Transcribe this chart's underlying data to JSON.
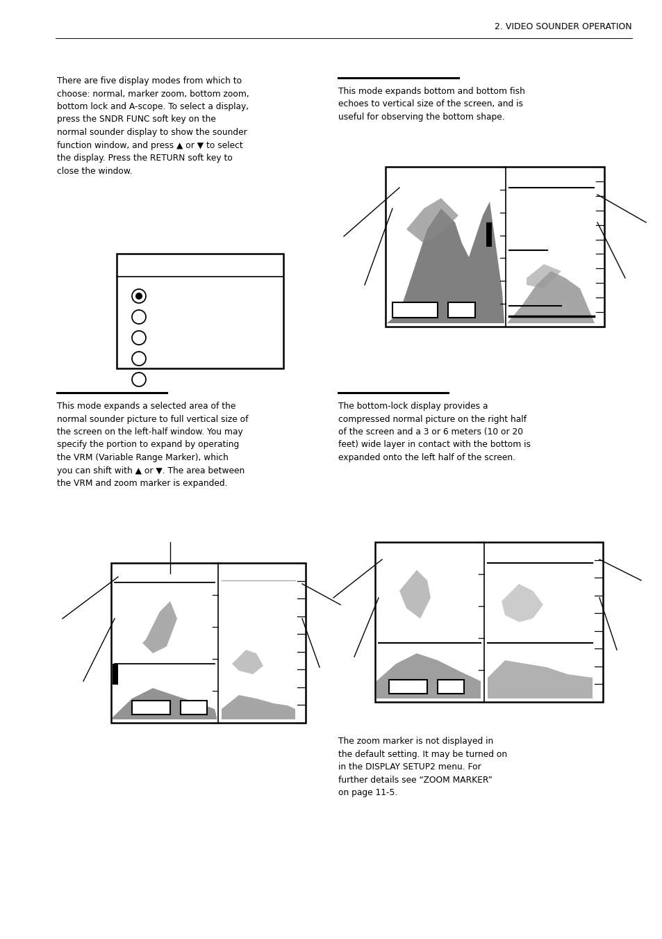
{
  "page_title": "2. VIDEO SOUNDER OPERATION",
  "background_color": "#ffffff",
  "text_color": "#000000",
  "section1_text": "There are five display modes from which to\nchoose: normal, marker zoom, bottom zoom,\nbottom lock and A-scope. To select a display,\npress the SNDR FUNC soft key on the\nnormal sounder display to show the sounder\nfunction window, and press ▲ or ▼ to select\nthe display. Press the RETURN soft key to\nclose the window.",
  "section2_text": "This mode expands bottom and bottom fish\nechoes to vertical size of the screen, and is\nuseful for observing the bottom shape.",
  "section3_text": "This mode expands a selected area of the\nnormal sounder picture to full vertical size of\nthe screen on the left-half window. You may\nspecify the portion to expand by operating\nthe VRM (Variable Range Marker), which\nyou can shift with ▲ or ▼. The area between\nthe VRM and zoom marker is expanded.",
  "section4_text": "The bottom-lock display provides a\ncompressed normal picture on the right half\nof the screen and a 3 or 6 meters (10 or 20\nfeet) wide layer in contact with the bottom is\nexpanded onto the left half of the screen.",
  "note_text": "The zoom marker is not displayed in\nthe default setting. It may be turned on\nin the DISPLAY SETUP2 menu. For\nfurther details see “ZOOM MARKER”\non page 11-5."
}
